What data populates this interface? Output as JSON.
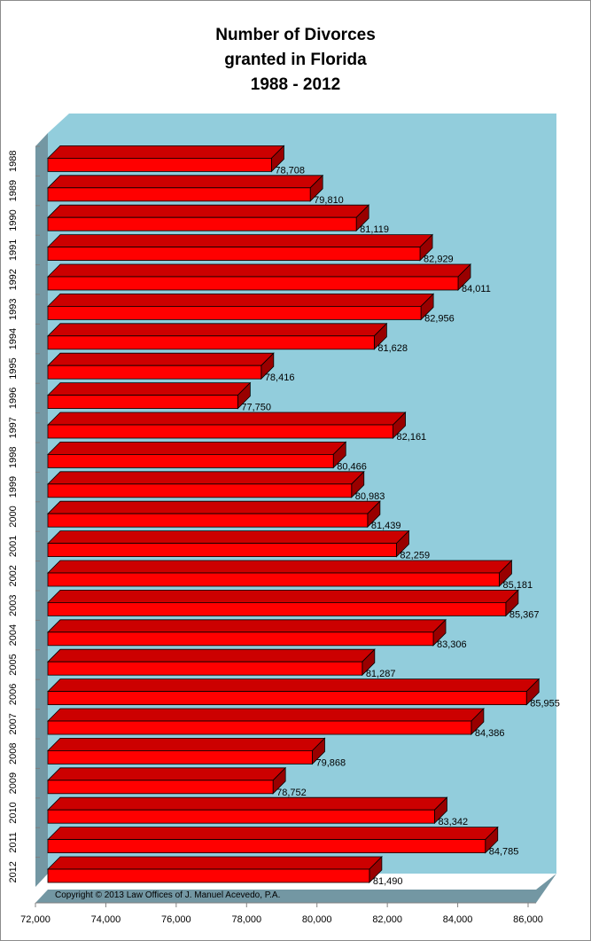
{
  "chart_data": {
    "type": "bar",
    "orientation": "horizontal",
    "style": "3d",
    "title": [
      "Number of Divorces",
      "granted in Florida",
      "1988 - 2012"
    ],
    "xlabel": "",
    "ylabel": "",
    "xlim": [
      72000,
      86000
    ],
    "x_ticks": [
      72000,
      74000,
      76000,
      78000,
      80000,
      82000,
      84000,
      86000
    ],
    "x_tick_labels": [
      "72,000",
      "74,000",
      "76,000",
      "78,000",
      "80,000",
      "82,000",
      "84,000",
      "86,000"
    ],
    "categories": [
      "1988",
      "1989",
      "1990",
      "1991",
      "1992",
      "1993",
      "1994",
      "1995",
      "1996",
      "1997",
      "1998",
      "1999",
      "2000",
      "2001",
      "2002",
      "2003",
      "2004",
      "2005",
      "2006",
      "2007",
      "2008",
      "2009",
      "2010",
      "2011",
      "2012"
    ],
    "values": [
      78708,
      79810,
      81119,
      82929,
      84011,
      82956,
      81628,
      78416,
      77750,
      82161,
      80466,
      80983,
      81439,
      82259,
      85181,
      85367,
      83306,
      81287,
      85955,
      84386,
      79868,
      78752,
      83342,
      84785,
      81490
    ],
    "data_labels": [
      "78,708",
      "79,810",
      "81,119",
      "82,929",
      "84,011",
      "82,956",
      "81,628",
      "78,416",
      "77,750",
      "82,161",
      "80,466",
      "80,983",
      "81,439",
      "82,259",
      "85,181",
      "85,367",
      "83,306",
      "81,287",
      "85,955",
      "84,386",
      "79,868",
      "78,752",
      "83,342",
      "84,785",
      "81,490"
    ],
    "bar_color": "#ff0000",
    "bar_top_color": "#cc0000",
    "bar_side_color": "#990000",
    "plot_back_color": "#92cddc",
    "plot_wall_color": "#7397a3",
    "plot_floor_color": "#7397a3",
    "grid": false,
    "legend": "none",
    "annotation": "Copyright © 2013 Law Offices of J. Manuel Acevedo, P.A."
  }
}
